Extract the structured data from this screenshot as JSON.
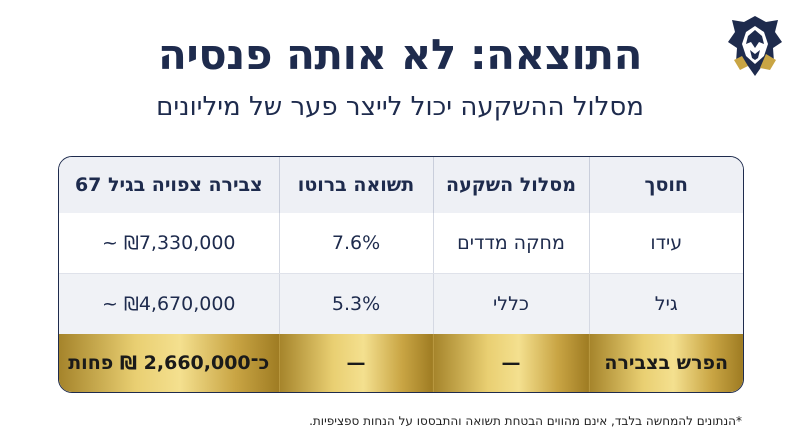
{
  "header": {
    "title": "התוצאה: לא אותה פנסיה",
    "subtitle": "מסלול ההשקעה יכול לייצר פער של מיליונים"
  },
  "table": {
    "columns": [
      "חוסך",
      "מסלול השקעה",
      "תשואה ברוטו",
      "צבירה צפויה בגיל 67"
    ],
    "rows": [
      [
        "עידו",
        "מחקה מדדים",
        "7.6%",
        "₪7,330,000 ~"
      ],
      [
        "גיל",
        "כללי",
        "5.3%",
        "₪4,670,000 ~"
      ]
    ],
    "summary": [
      "הפרש בצבירה",
      "—",
      "—",
      "כ־2,660,000 ₪ פחות"
    ]
  },
  "footnote": "*הנתונים להמחשה בלבד, אינם מהווים הבטחת תשואה והתבססו על הנחות ספציפיות.",
  "colors": {
    "navy": "#1e2b4d",
    "gold": "#e9cf72",
    "header_bg": "#eef0f5"
  },
  "logo": {
    "icon": "lion-head-icon"
  }
}
